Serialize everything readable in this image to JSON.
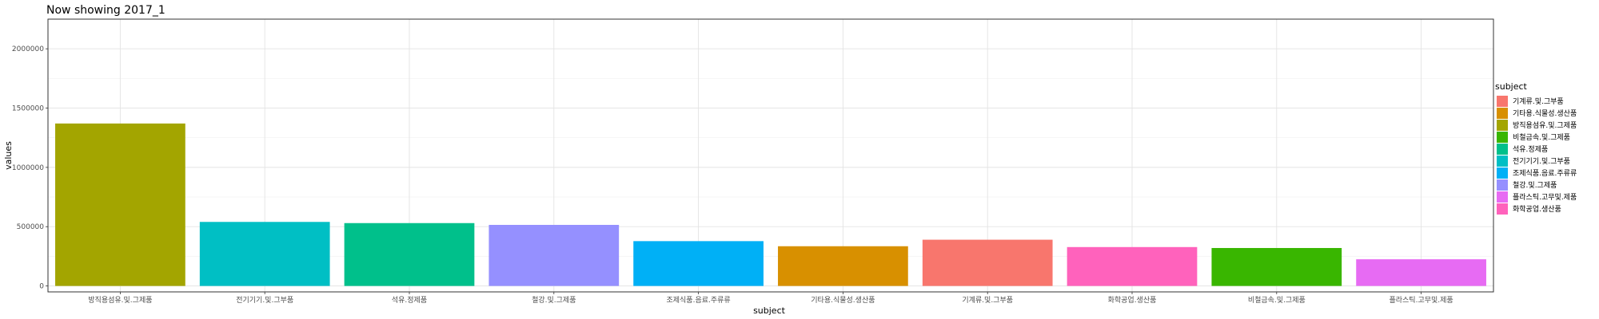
{
  "chart_data": {
    "type": "bar",
    "title": "Now showing 2017_1",
    "xlabel": "subject",
    "ylabel": "values",
    "ylim": [
      -50000,
      2250000
    ],
    "yticks": [
      0,
      500000,
      1000000,
      1500000,
      2000000
    ],
    "ytick_labels": [
      "0",
      "500000",
      "1000000",
      "1500000",
      "2000000"
    ],
    "grid": true,
    "legend_position": "right",
    "legend_title": "subject",
    "categories": [
      "방직용섬유.및.그제품",
      "전기기기.및.그부품",
      "석유.정제품",
      "철강.및.그제품",
      "조제식품.음료.주류류",
      "기타용.식물성.생산품",
      "기계류.및.그부품",
      "화학공업.생산품",
      "비철금속.및.그제품",
      "플라스틱.고무및.제품"
    ],
    "values": [
      1370000,
      540000,
      530000,
      515000,
      378000,
      335000,
      390000,
      328000,
      320000,
      225000
    ],
    "colors": [
      "#A3A500",
      "#00BFC4",
      "#00C08B",
      "#9590FF",
      "#00B0F6",
      "#D89000",
      "#F8766D",
      "#FF62BC",
      "#39B600",
      "#E76BF3"
    ],
    "legend": [
      {
        "label": "기계류.및.그부품",
        "color": "#F8766D"
      },
      {
        "label": "기타용.식물성.생산품",
        "color": "#D89000"
      },
      {
        "label": "방직용섬유.및.그제품",
        "color": "#A3A500"
      },
      {
        "label": "비철금속.및.그제품",
        "color": "#39B600"
      },
      {
        "label": "석유.정제품",
        "color": "#00C08B"
      },
      {
        "label": "전기기기.및.그부품",
        "color": "#00BFC4"
      },
      {
        "label": "조제식품.음료.주류류",
        "color": "#00B0F6"
      },
      {
        "label": "철강.및.그제품",
        "color": "#9590FF"
      },
      {
        "label": "플라스틱.고무및.제품",
        "color": "#E76BF3"
      },
      {
        "label": "화학공업.생산품",
        "color": "#FF62BC"
      }
    ]
  }
}
